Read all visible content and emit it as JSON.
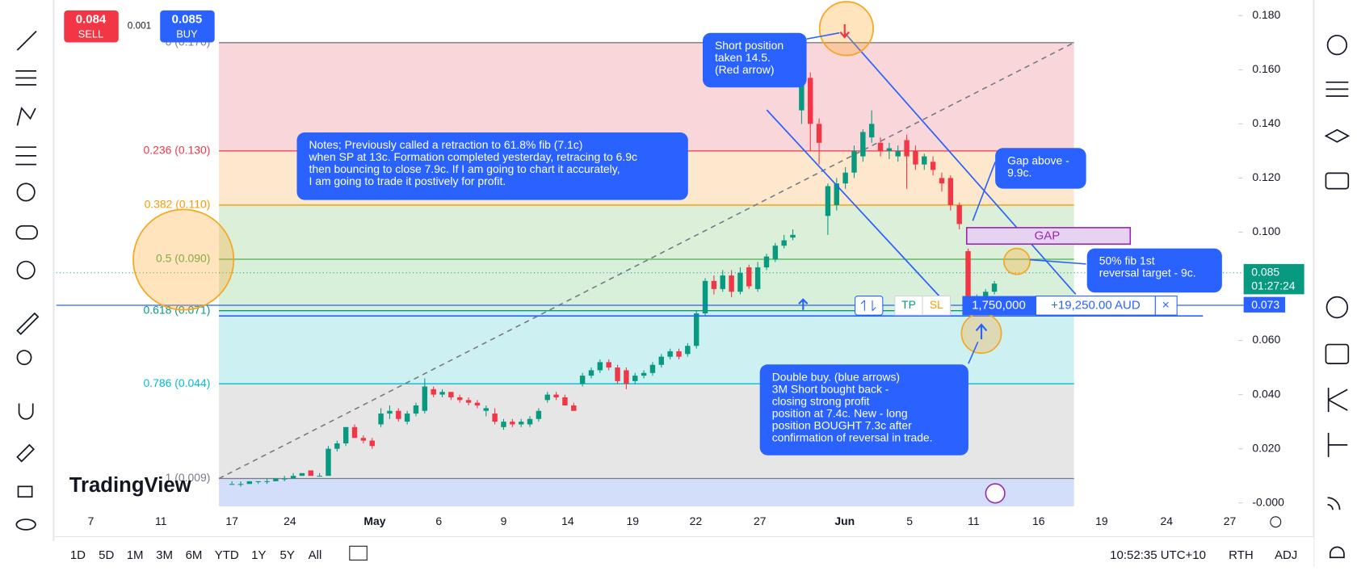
{
  "trade_panel": {
    "sell_price": "0.084",
    "sell_label": "SELL",
    "spread": "0.001",
    "buy_price": "0.085",
    "buy_label": "BUY"
  },
  "price_axis": {
    "ylim": [
      0,
      0.18
    ],
    "ticks": [
      {
        "value": 0.18,
        "label": "0.180"
      },
      {
        "value": 0.16,
        "label": "0.160"
      },
      {
        "value": 0.14,
        "label": "0.140"
      },
      {
        "value": 0.12,
        "label": "0.120"
      },
      {
        "value": 0.1,
        "label": "0.100"
      },
      {
        "value": 0.06,
        "label": "0.060"
      },
      {
        "value": 0.04,
        "label": "0.040"
      },
      {
        "value": 0.02,
        "label": "0.020"
      },
      {
        "value": 0,
        "label": "-0.000"
      }
    ]
  },
  "time_axis": {
    "labels": [
      "7",
      "11",
      "17",
      "24",
      "May",
      "6",
      "9",
      "14",
      "19",
      "22",
      "27",
      "Jun",
      "5",
      "11",
      "16",
      "19",
      "24",
      "27"
    ]
  },
  "fib_levels": [
    {
      "value": 0.17,
      "label": "0 (0.170)"
    },
    {
      "value": 0.13,
      "label": "0.236 (0.130)"
    },
    {
      "value": 0.11,
      "label": "0.382 (0.110)"
    },
    {
      "value": 0.09,
      "label": "0.5 (0.090)"
    },
    {
      "value": 0.071,
      "label": "0.618 (0.071)"
    },
    {
      "value": 0.044,
      "label": "0.786 (0.044)"
    },
    {
      "value": 0.009,
      "label": "1 (0.009)"
    }
  ],
  "current_price": {
    "value": 0.085,
    "label": "0.085",
    "countdown": "01:27:24"
  },
  "position_line": {
    "value": 0.073,
    "label": "0.073",
    "quantity": "1,750,000",
    "pnl": "+19,250.00 AUD",
    "tp": "TP",
    "sl": "SL",
    "close": "×"
  },
  "gap_label": "GAP",
  "annotations": {
    "short": [
      "Short position",
      "taken 14.5.",
      "(Red arrow)"
    ],
    "notes": [
      "Notes; Previously called a retraction to 61.8% fib (7.1c)",
      "when SP at 13c. Formation completed yesterday, retracing to 6.9c",
      "then bouncing to close 7.9c. If I am going to chart it accurately,",
      "I am going to trade it postively for profit."
    ],
    "gap": [
      "Gap above -",
      "9.9c."
    ],
    "target": [
      "50% fib 1st",
      "reversal target - 9c."
    ],
    "double_buy": [
      "Double buy. (blue arrows)",
      "3M Short bought back -",
      "closing strong profit",
      "position at 7.4c. New - long",
      "position BOUGHT 7.3c after",
      "confirmation of reversal in trade."
    ]
  },
  "logo": "TradingView",
  "bottom_bar": {
    "ranges": [
      "1D",
      "5D",
      "1M",
      "3M",
      "6M",
      "YTD",
      "1Y",
      "5Y",
      "All"
    ],
    "clock": "10:52:35 UTC+10",
    "session": "RTH",
    "adjust": "ADJ"
  },
  "candles": [
    {
      "o": 0.007,
      "h": 0.008,
      "l": 0.007,
      "c": 0.007
    },
    {
      "o": 0.007,
      "h": 0.008,
      "l": 0.006,
      "c": 0.007
    },
    {
      "o": 0.007,
      "h": 0.008,
      "l": 0.007,
      "c": 0.008
    },
    {
      "o": 0.008,
      "h": 0.008,
      "l": 0.007,
      "c": 0.008
    },
    {
      "o": 0.008,
      "h": 0.009,
      "l": 0.007,
      "c": 0.008
    },
    {
      "o": 0.008,
      "h": 0.009,
      "l": 0.008,
      "c": 0.009
    },
    {
      "o": 0.009,
      "h": 0.01,
      "l": 0.008,
      "c": 0.009
    },
    {
      "o": 0.009,
      "h": 0.011,
      "l": 0.009,
      "c": 0.01
    },
    {
      "o": 0.01,
      "h": 0.011,
      "l": 0.01,
      "c": 0.011
    },
    {
      "o": 0.012,
      "h": 0.012,
      "l": 0.01,
      "c": 0.01
    },
    {
      "o": 0.01,
      "h": 0.011,
      "l": 0.01,
      "c": 0.01
    },
    {
      "o": 0.01,
      "h": 0.021,
      "l": 0.01,
      "c": 0.02
    },
    {
      "o": 0.02,
      "h": 0.023,
      "l": 0.019,
      "c": 0.022
    },
    {
      "o": 0.022,
      "h": 0.028,
      "l": 0.021,
      "c": 0.028
    },
    {
      "o": 0.028,
      "h": 0.029,
      "l": 0.024,
      "c": 0.024
    },
    {
      "o": 0.024,
      "h": 0.025,
      "l": 0.022,
      "c": 0.023
    },
    {
      "o": 0.023,
      "h": 0.024,
      "l": 0.02,
      "c": 0.021
    },
    {
      "o": 0.029,
      "h": 0.035,
      "l": 0.028,
      "c": 0.033
    },
    {
      "o": 0.033,
      "h": 0.036,
      "l": 0.031,
      "c": 0.034
    },
    {
      "o": 0.034,
      "h": 0.035,
      "l": 0.03,
      "c": 0.031
    },
    {
      "o": 0.03,
      "h": 0.034,
      "l": 0.029,
      "c": 0.033
    },
    {
      "o": 0.033,
      "h": 0.037,
      "l": 0.032,
      "c": 0.036
    },
    {
      "o": 0.034,
      "h": 0.046,
      "l": 0.033,
      "c": 0.043
    },
    {
      "o": 0.042,
      "h": 0.043,
      "l": 0.039,
      "c": 0.04
    },
    {
      "o": 0.04,
      "h": 0.042,
      "l": 0.039,
      "c": 0.041
    },
    {
      "o": 0.041,
      "h": 0.041,
      "l": 0.038,
      "c": 0.039
    },
    {
      "o": 0.039,
      "h": 0.04,
      "l": 0.037,
      "c": 0.038
    },
    {
      "o": 0.038,
      "h": 0.039,
      "l": 0.036,
      "c": 0.037
    },
    {
      "o": 0.037,
      "h": 0.038,
      "l": 0.035,
      "c": 0.036
    },
    {
      "o": 0.034,
      "h": 0.036,
      "l": 0.032,
      "c": 0.035
    },
    {
      "o": 0.033,
      "h": 0.035,
      "l": 0.029,
      "c": 0.03
    },
    {
      "o": 0.028,
      "h": 0.031,
      "l": 0.027,
      "c": 0.03
    },
    {
      "o": 0.03,
      "h": 0.031,
      "l": 0.028,
      "c": 0.029
    },
    {
      "o": 0.029,
      "h": 0.031,
      "l": 0.028,
      "c": 0.03
    },
    {
      "o": 0.029,
      "h": 0.032,
      "l": 0.028,
      "c": 0.031
    },
    {
      "o": 0.031,
      "h": 0.035,
      "l": 0.03,
      "c": 0.034
    },
    {
      "o": 0.038,
      "h": 0.041,
      "l": 0.037,
      "c": 0.04
    },
    {
      "o": 0.04,
      "h": 0.041,
      "l": 0.038,
      "c": 0.039
    },
    {
      "o": 0.039,
      "h": 0.04,
      "l": 0.036,
      "c": 0.036
    },
    {
      "o": 0.036,
      "h": 0.037,
      "l": 0.034,
      "c": 0.034
    },
    {
      "o": 0.044,
      "h": 0.048,
      "l": 0.043,
      "c": 0.047
    },
    {
      "o": 0.047,
      "h": 0.05,
      "l": 0.046,
      "c": 0.049
    },
    {
      "o": 0.049,
      "h": 0.053,
      "l": 0.048,
      "c": 0.052
    },
    {
      "o": 0.052,
      "h": 0.053,
      "l": 0.049,
      "c": 0.05
    },
    {
      "o": 0.05,
      "h": 0.051,
      "l": 0.044,
      "c": 0.045
    },
    {
      "o": 0.049,
      "h": 0.05,
      "l": 0.042,
      "c": 0.044
    },
    {
      "o": 0.045,
      "h": 0.048,
      "l": 0.044,
      "c": 0.047
    },
    {
      "o": 0.047,
      "h": 0.049,
      "l": 0.046,
      "c": 0.048
    },
    {
      "o": 0.048,
      "h": 0.052,
      "l": 0.047,
      "c": 0.051
    },
    {
      "o": 0.051,
      "h": 0.055,
      "l": 0.05,
      "c": 0.054
    },
    {
      "o": 0.054,
      "h": 0.057,
      "l": 0.053,
      "c": 0.056
    },
    {
      "o": 0.056,
      "h": 0.057,
      "l": 0.053,
      "c": 0.054
    },
    {
      "o": 0.055,
      "h": 0.059,
      "l": 0.054,
      "c": 0.058
    },
    {
      "o": 0.058,
      "h": 0.071,
      "l": 0.057,
      "c": 0.07
    },
    {
      "o": 0.07,
      "h": 0.083,
      "l": 0.069,
      "c": 0.082
    },
    {
      "o": 0.082,
      "h": 0.084,
      "l": 0.077,
      "c": 0.079
    },
    {
      "o": 0.079,
      "h": 0.086,
      "l": 0.078,
      "c": 0.084
    },
    {
      "o": 0.084,
      "h": 0.086,
      "l": 0.076,
      "c": 0.078
    },
    {
      "o": 0.078,
      "h": 0.087,
      "l": 0.077,
      "c": 0.085
    },
    {
      "o": 0.087,
      "h": 0.088,
      "l": 0.079,
      "c": 0.08
    },
    {
      "o": 0.079,
      "h": 0.089,
      "l": 0.078,
      "c": 0.087
    },
    {
      "o": 0.087,
      "h": 0.092,
      "l": 0.086,
      "c": 0.091
    },
    {
      "o": 0.09,
      "h": 0.096,
      "l": 0.089,
      "c": 0.095
    },
    {
      "o": 0.095,
      "h": 0.099,
      "l": 0.094,
      "c": 0.097
    },
    {
      "o": 0.098,
      "h": 0.101,
      "l": 0.097,
      "c": 0.099
    },
    {
      "o": 0.145,
      "h": 0.162,
      "l": 0.14,
      "c": 0.16
    },
    {
      "o": 0.157,
      "h": 0.159,
      "l": 0.13,
      "c": 0.14
    },
    {
      "o": 0.14,
      "h": 0.142,
      "l": 0.125,
      "c": 0.133
    },
    {
      "o": 0.106,
      "h": 0.118,
      "l": 0.099,
      "c": 0.117
    },
    {
      "o": 0.11,
      "h": 0.12,
      "l": 0.108,
      "c": 0.118
    },
    {
      "o": 0.118,
      "h": 0.124,
      "l": 0.116,
      "c": 0.122
    },
    {
      "o": 0.122,
      "h": 0.132,
      "l": 0.12,
      "c": 0.13
    },
    {
      "o": 0.128,
      "h": 0.138,
      "l": 0.126,
      "c": 0.137
    },
    {
      "o": 0.135,
      "h": 0.145,
      "l": 0.133,
      "c": 0.14
    },
    {
      "o": 0.133,
      "h": 0.135,
      "l": 0.128,
      "c": 0.13
    },
    {
      "o": 0.13,
      "h": 0.133,
      "l": 0.127,
      "c": 0.131
    },
    {
      "o": 0.128,
      "h": 0.132,
      "l": 0.126,
      "c": 0.13
    },
    {
      "o": 0.134,
      "h": 0.136,
      "l": 0.116,
      "c": 0.128
    },
    {
      "o": 0.13,
      "h": 0.132,
      "l": 0.123,
      "c": 0.125
    },
    {
      "o": 0.125,
      "h": 0.129,
      "l": 0.123,
      "c": 0.128
    },
    {
      "o": 0.126,
      "h": 0.128,
      "l": 0.121,
      "c": 0.123
    },
    {
      "o": 0.12,
      "h": 0.122,
      "l": 0.115,
      "c": 0.118
    },
    {
      "o": 0.12,
      "h": 0.121,
      "l": 0.108,
      "c": 0.11
    },
    {
      "o": 0.11,
      "h": 0.111,
      "l": 0.101,
      "c": 0.103
    },
    {
      "o": 0.093,
      "h": 0.094,
      "l": 0.072,
      "c": 0.074
    },
    {
      "o": 0.074,
      "h": 0.077,
      "l": 0.072,
      "c": 0.075
    },
    {
      "o": 0.076,
      "h": 0.079,
      "l": 0.075,
      "c": 0.078
    },
    {
      "o": 0.078,
      "h": 0.082,
      "l": 0.077,
      "c": 0.081
    }
  ]
}
